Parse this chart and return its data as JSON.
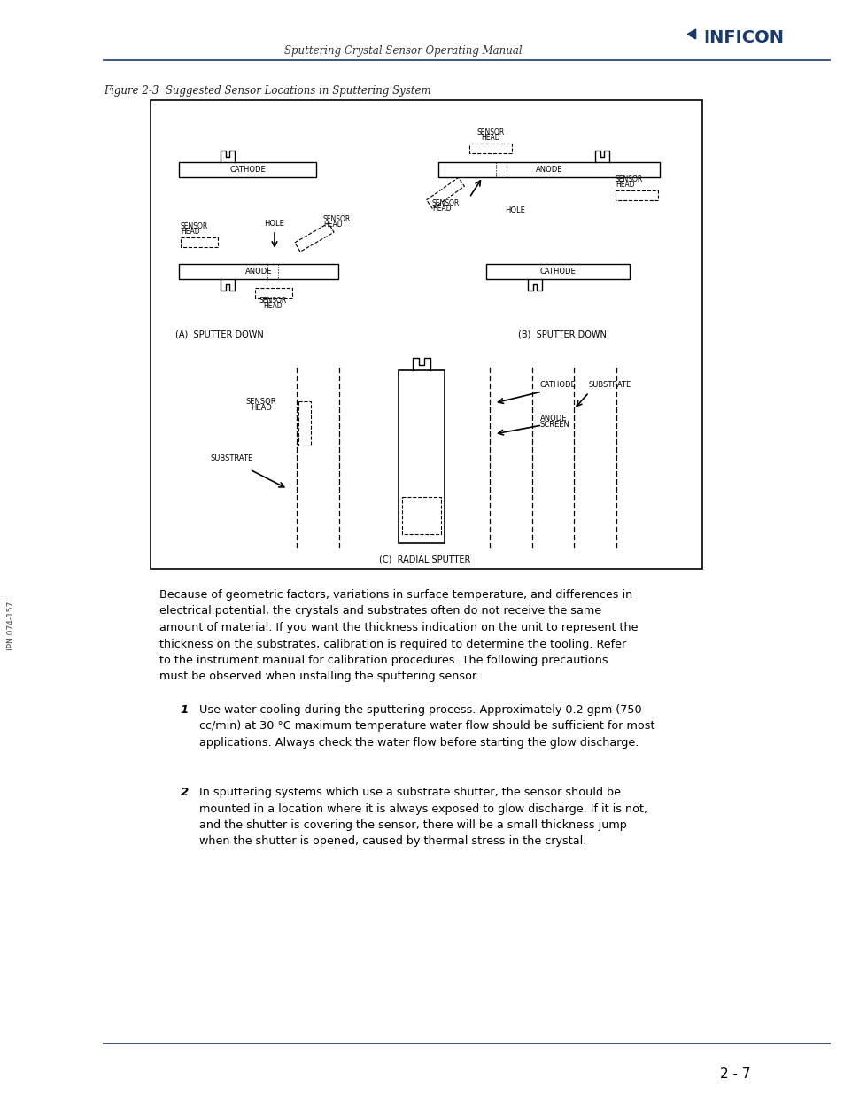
{
  "page_title": "Sputtering Crystal Sensor Operating Manual",
  "figure_caption": "Figure 2-3  Suggested Sensor Locations in Sputtering System",
  "header_line_color": "#1a3a6b",
  "footer_line_color": "#1a3a6b",
  "page_number": "2 - 7",
  "side_text": "IPN 074-157L",
  "body_text_1": "Because of geometric factors, variations in surface temperature, and differences in\nelectrical potential, the crystals and substrates often do not receive the same\namount of material. If you want the thickness indication on the unit to represent the\nthickness on the substrates, calibration is required to determine the tooling. Refer\nto the instrument manual for calibration procedures. The following precautions\nmust be observed when installing the sputtering sensor.",
  "item1_num": "1",
  "item1_text": "Use water cooling during the sputtering process. Approximately 0.2 gpm (750\ncc/min) at 30 °C maximum temperature water flow should be sufficient for most\napplications. Always check the water flow before starting the glow discharge.",
  "item2_num": "2",
  "item2_text": "In sputtering systems which use a substrate shutter, the sensor should be\nmounted in a location where it is always exposed to glow discharge. If it is not,\nand the shutter is covering the sensor, there will be a small thickness jump\nwhen the shutter is opened, caused by thermal stress in the crystal.",
  "bg_color": "#ffffff",
  "text_color": "#000000",
  "inficon_color": "#1a3a6b"
}
